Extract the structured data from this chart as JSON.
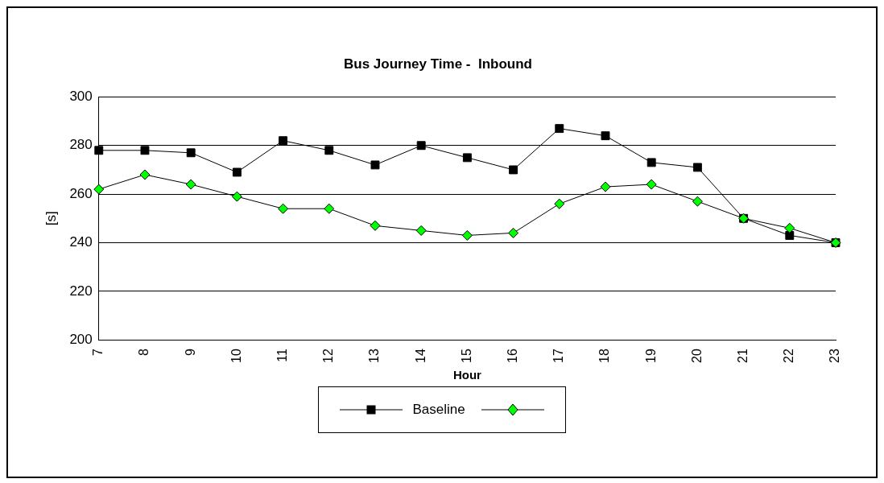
{
  "chart_data": {
    "type": "line",
    "title": "Bus Journey Time -  Inbound",
    "xlabel": "Hour",
    "ylabel": "[s]",
    "categories": [
      "7",
      "8",
      "9",
      "10",
      "11",
      "12",
      "13",
      "14",
      "15",
      "16",
      "17",
      "18",
      "19",
      "20",
      "21",
      "22",
      "23"
    ],
    "series": [
      {
        "name": "Baseline",
        "color": "#000000",
        "marker": "square",
        "values": [
          278,
          278,
          277,
          269,
          282,
          278,
          272,
          280,
          275,
          270,
          287,
          284,
          273,
          271,
          250,
          243,
          240
        ]
      },
      {
        "color": "#00ff00",
        "marker": "diamond",
        "values": [
          262,
          268,
          264,
          259,
          254,
          254,
          247,
          245,
          243,
          244,
          256,
          263,
          264,
          257,
          250,
          246,
          240
        ]
      }
    ],
    "ylim": [
      200,
      300
    ],
    "yticks": [
      200,
      220,
      240,
      260,
      280,
      300
    ],
    "grid": "y",
    "legend": "bottom",
    "line_style": "solid"
  }
}
